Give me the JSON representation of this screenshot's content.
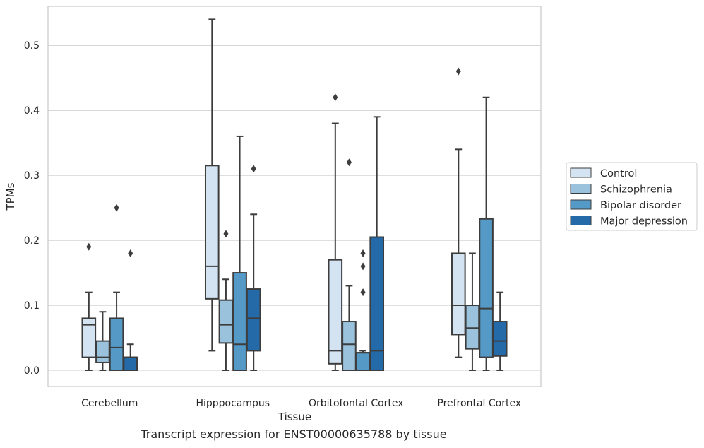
{
  "caption": "Transcript expression for ENST00000635788 by tissue",
  "chart_data": {
    "type": "box",
    "xlabel": "Tissue",
    "ylabel": "TPMs",
    "ylim": [
      -0.025,
      0.56
    ],
    "yticks": [
      0.0,
      0.1,
      0.2,
      0.3,
      0.4,
      0.5
    ],
    "ytick_labels": [
      "0.0",
      "0.1",
      "0.2",
      "0.3",
      "0.4",
      "0.5"
    ],
    "grid": true,
    "legend_position": "right",
    "categories": [
      "Cerebellum",
      "Hipppocampus",
      "Orbitofontal Cortex",
      "Prefrontal Cortex"
    ],
    "series": [
      {
        "name": "Control",
        "color": "#d3e3f2",
        "boxes": [
          {
            "whislo": 0.0,
            "q1": 0.02,
            "med": 0.07,
            "q3": 0.08,
            "whishi": 0.12,
            "fliers": [
              0.19
            ]
          },
          {
            "whislo": 0.03,
            "q1": 0.11,
            "med": 0.16,
            "q3": 0.315,
            "whishi": 0.54,
            "fliers": []
          },
          {
            "whislo": 0.0,
            "q1": 0.01,
            "med": 0.03,
            "q3": 0.17,
            "whishi": 0.38,
            "fliers": [
              0.42
            ]
          },
          {
            "whislo": 0.02,
            "q1": 0.055,
            "med": 0.1,
            "q3": 0.18,
            "whishi": 0.34,
            "fliers": [
              0.46
            ]
          }
        ]
      },
      {
        "name": "Schizophrenia",
        "color": "#9ac2dc",
        "boxes": [
          {
            "whislo": 0.0,
            "q1": 0.012,
            "med": 0.02,
            "q3": 0.045,
            "whishi": 0.09,
            "fliers": []
          },
          {
            "whislo": 0.0,
            "q1": 0.042,
            "med": 0.07,
            "q3": 0.108,
            "whishi": 0.14,
            "fliers": [
              0.21
            ]
          },
          {
            "whislo": 0.0,
            "q1": 0.0,
            "med": 0.04,
            "q3": 0.075,
            "whishi": 0.13,
            "fliers": [
              0.32
            ]
          },
          {
            "whislo": 0.0,
            "q1": 0.033,
            "med": 0.065,
            "q3": 0.1,
            "whishi": 0.18,
            "fliers": []
          }
        ]
      },
      {
        "name": "Bipolar disorder",
        "color": "#5599c7",
        "boxes": [
          {
            "whislo": 0.0,
            "q1": 0.0,
            "med": 0.035,
            "q3": 0.08,
            "whishi": 0.12,
            "fliers": [
              0.25
            ]
          },
          {
            "whislo": 0.0,
            "q1": 0.0,
            "med": 0.04,
            "q3": 0.15,
            "whishi": 0.36,
            "fliers": []
          },
          {
            "whislo": 0.0,
            "q1": 0.0,
            "med": 0.027,
            "q3": 0.027,
            "whishi": 0.03,
            "fliers": [
              0.12,
              0.16,
              0.18
            ]
          },
          {
            "whislo": 0.0,
            "q1": 0.02,
            "med": 0.095,
            "q3": 0.233,
            "whishi": 0.42,
            "fliers": []
          }
        ]
      },
      {
        "name": "Major depression",
        "color": "#2469a8",
        "boxes": [
          {
            "whislo": 0.0,
            "q1": 0.0,
            "med": 0.02,
            "q3": 0.02,
            "whishi": 0.04,
            "fliers": [
              0.18
            ]
          },
          {
            "whislo": 0.0,
            "q1": 0.03,
            "med": 0.08,
            "q3": 0.125,
            "whishi": 0.24,
            "fliers": [
              0.31
            ]
          },
          {
            "whislo": 0.0,
            "q1": 0.0,
            "med": 0.03,
            "q3": 0.205,
            "whishi": 0.39,
            "fliers": []
          },
          {
            "whislo": 0.0,
            "q1": 0.022,
            "med": 0.045,
            "q3": 0.075,
            "whishi": 0.12,
            "fliers": []
          }
        ]
      }
    ]
  }
}
